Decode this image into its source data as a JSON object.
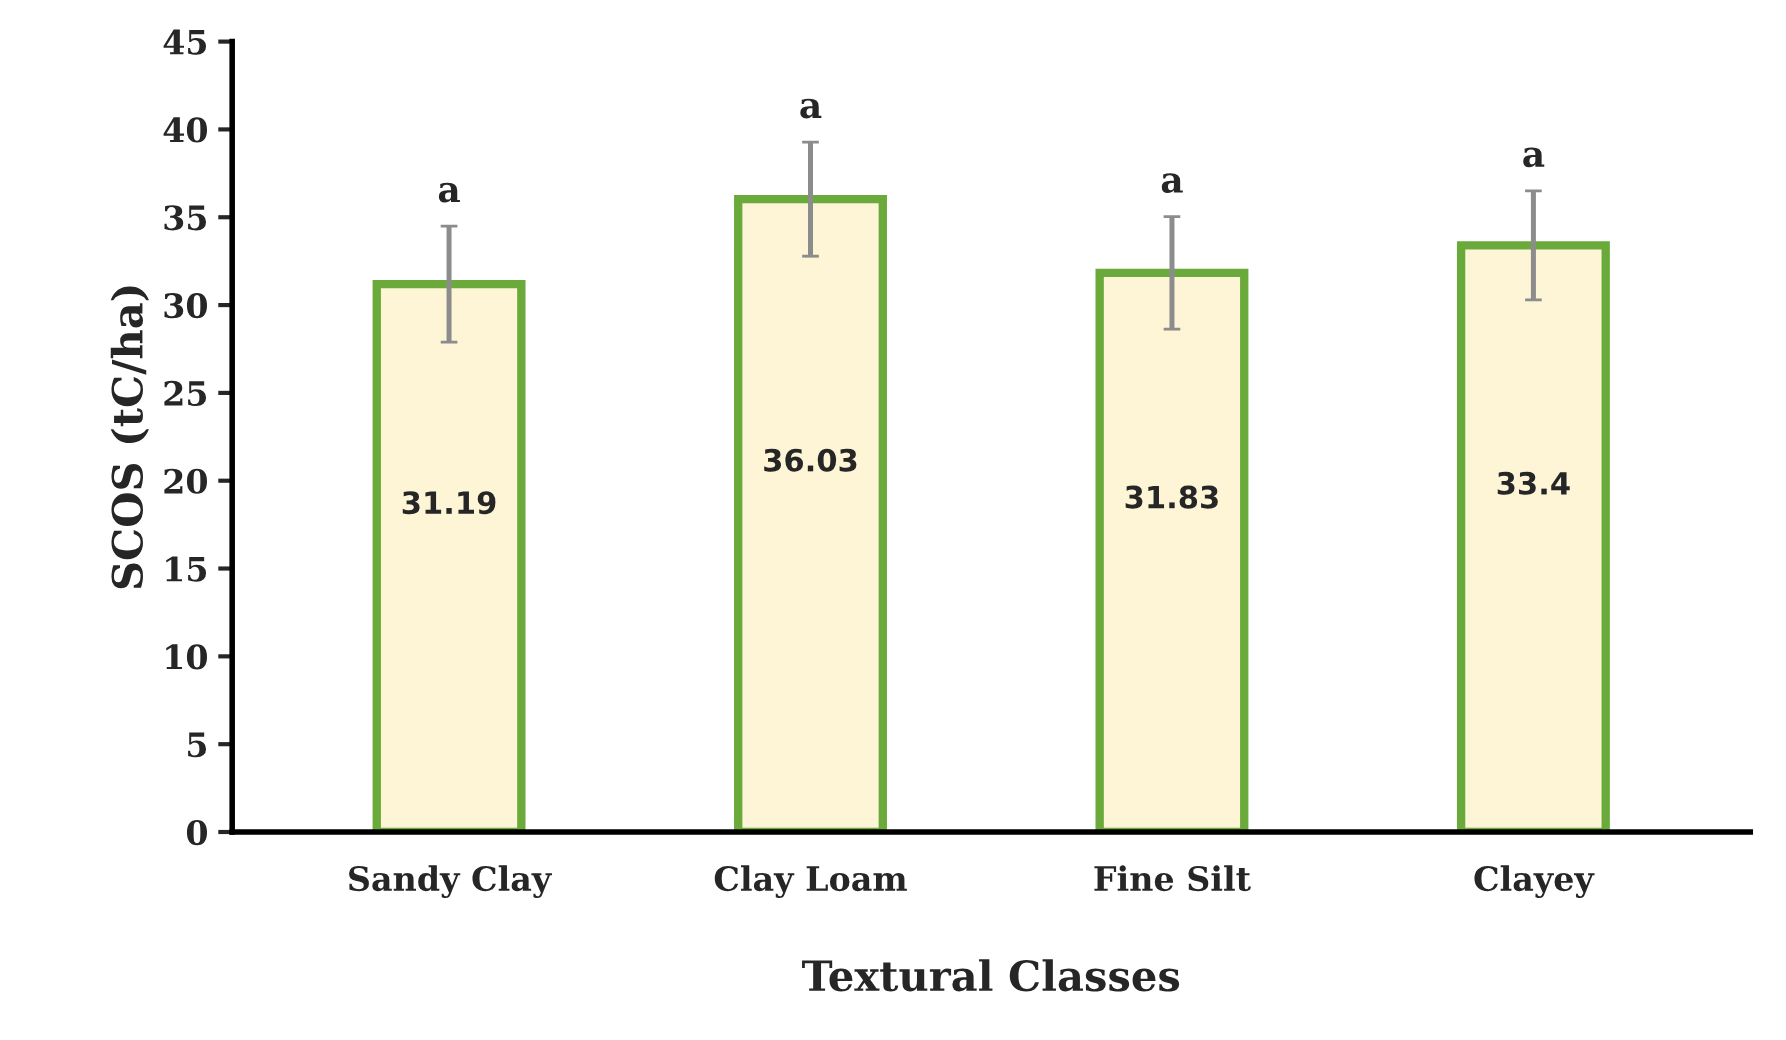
{
  "chart_data": {
    "type": "bar",
    "xlabel": "Textural Classes",
    "ylabel": "SCOS (tC/ha)",
    "categories": [
      "Sandy Clay",
      "Clay Loam",
      "Fine Silt",
      "Clayey"
    ],
    "values": [
      31.19,
      36.03,
      31.83,
      33.4
    ],
    "errors": [
      3.3,
      3.25,
      3.2,
      3.1
    ],
    "color": "#6aaa3a",
    "data_labels": true,
    "ylim": [
      0,
      45
    ],
    "yticks": [
      0,
      5,
      10,
      15,
      20,
      25,
      30,
      35,
      40,
      45
    ],
    "grid": false,
    "legend": false,
    "annotations": [
      "a",
      "a",
      "a",
      "a"
    ]
  }
}
